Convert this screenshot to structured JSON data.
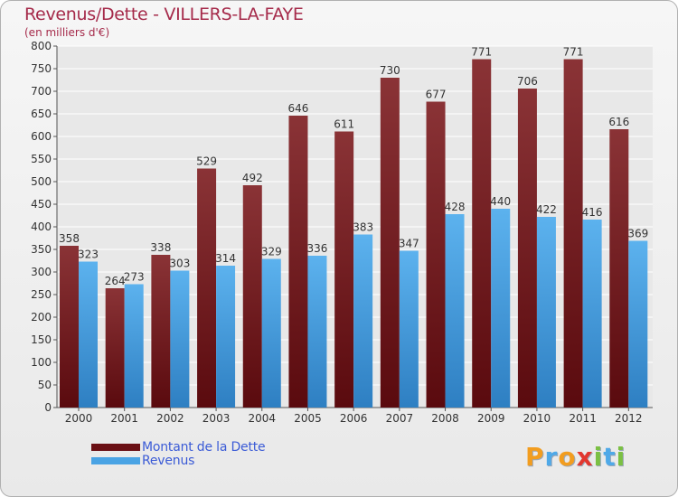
{
  "header": {
    "title": "Revenus/Dette - VILLERS-LA-FAYE",
    "subtitle": "(en milliers d'€)"
  },
  "chart_data": {
    "type": "bar",
    "title": "Revenus/Dette - VILLERS-LA-FAYE",
    "ylabel": "(en milliers d'€)",
    "xlabel": "",
    "ylim": [
      0,
      800
    ],
    "yticks": [
      0,
      50,
      100,
      150,
      200,
      250,
      300,
      350,
      400,
      450,
      500,
      550,
      600,
      650,
      700,
      750,
      800
    ],
    "grid": true,
    "legend": "bottom-left",
    "categories": [
      "2000",
      "2001",
      "2002",
      "2003",
      "2004",
      "2005",
      "2006",
      "2007",
      "2008",
      "2009",
      "2010",
      "2011",
      "2012"
    ],
    "series": [
      {
        "name": "Montant de la Dette",
        "color": "#7a1e26",
        "values": [
          358,
          264,
          338,
          529,
          492,
          646,
          611,
          730,
          677,
          771,
          706,
          771,
          616
        ]
      },
      {
        "name": "Revenus",
        "color": "#4aa3e4",
        "values": [
          323,
          273,
          303,
          314,
          329,
          336,
          383,
          347,
          428,
          440,
          422,
          416,
          369
        ]
      }
    ]
  },
  "legend": {
    "items": [
      {
        "label": "Montant de la Dette",
        "color": "#6a0f14"
      },
      {
        "label": "Revenus",
        "color": "#4aa3e4"
      }
    ]
  },
  "logo": {
    "letters": [
      "P",
      "r",
      "o",
      "x",
      "i",
      "t",
      "i"
    ],
    "colors": [
      "#f29d1f",
      "#4fa9e8",
      "#f29d1f",
      "#e2372f",
      "#7bc043",
      "#4fa9e8",
      "#7bc043"
    ]
  }
}
